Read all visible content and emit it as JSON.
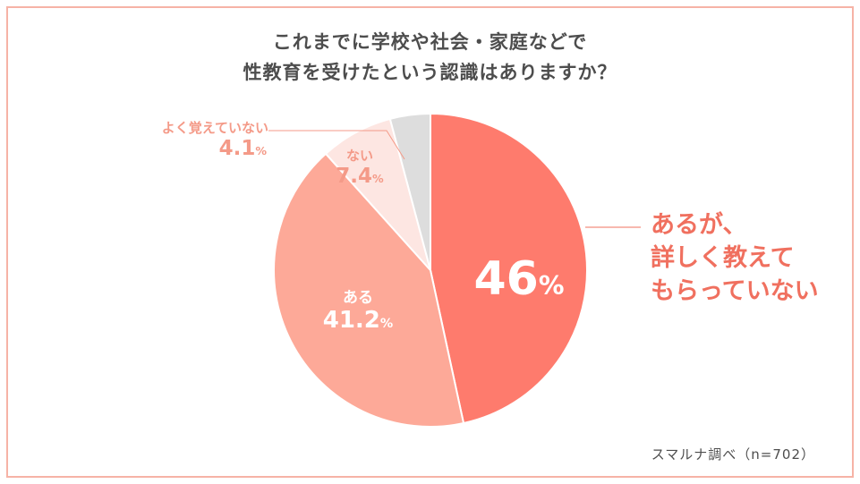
{
  "title_line1": "これまでに学校や社会・家庭などで",
  "title_line2": "性教育を受けたという認識はありますか？",
  "chart_data": {
    "type": "pie",
    "title": "これまでに学校や社会・家庭などで性教育を受けたという認識はありますか？",
    "start_angle_deg": 0,
    "direction": "clockwise",
    "slices": [
      {
        "label_lines": [
          "あるが、",
          "詳しく教えて",
          "もらっていない"
        ],
        "value": 46,
        "value_label": "46",
        "color": "#fe7b6d"
      },
      {
        "label_lines": [
          "ある"
        ],
        "value": 41.2,
        "value_label": "41.2",
        "color": "#fda998"
      },
      {
        "label_lines": [
          "ない"
        ],
        "value": 7.4,
        "value_label": "7.4",
        "color": "#fde6e2"
      },
      {
        "label_lines": [
          "よく覚えていない"
        ],
        "value": 4.1,
        "value_label": "4.1",
        "color": "#dddddd"
      }
    ],
    "percent_sign": "%",
    "source": "スマルナ調べ（n=702）"
  }
}
